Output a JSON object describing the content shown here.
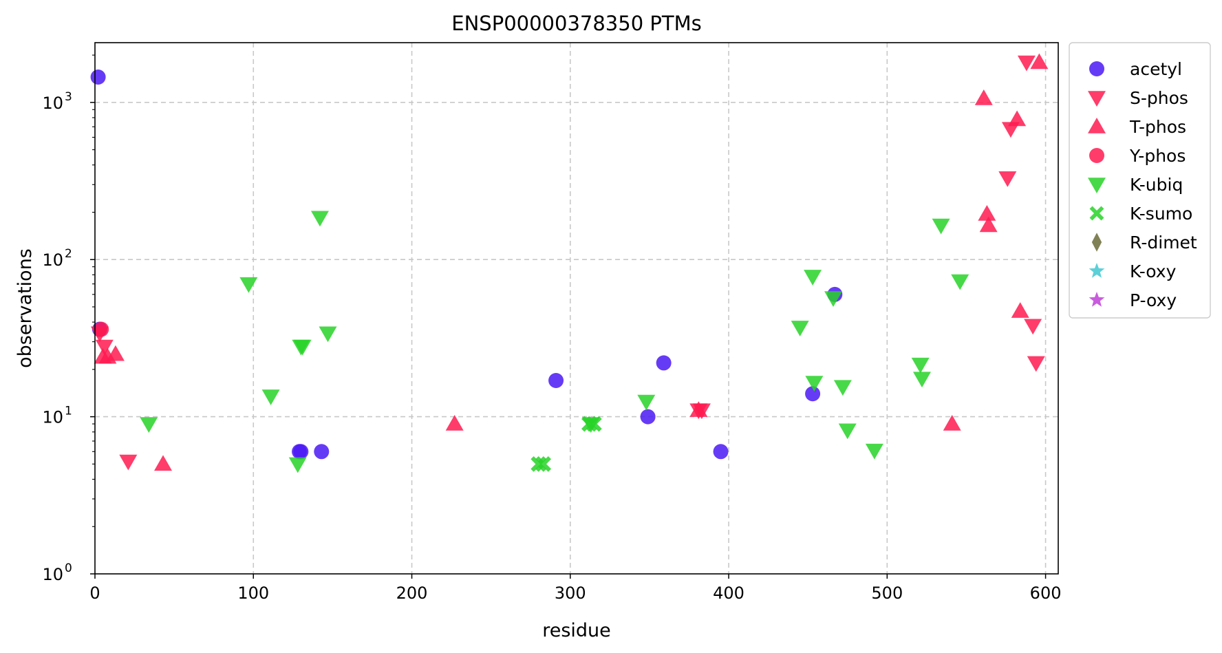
{
  "chart_data": {
    "type": "scatter",
    "title": "ENSP00000378350 PTMs",
    "xlabel": "residue",
    "ylabel": "observations",
    "xlim": [
      0,
      608
    ],
    "ylim": [
      1,
      2400
    ],
    "yscale": "log",
    "grid": true,
    "legend_position": "outside-top-right",
    "x_ticks": [
      0,
      100,
      200,
      300,
      400,
      500,
      600
    ],
    "x_tick_labels": [
      "0",
      "100",
      "200",
      "300",
      "400",
      "500",
      "600"
    ],
    "y_ticks": [
      {
        "value": 1,
        "base": "10",
        "exp": "0"
      },
      {
        "value": 10,
        "base": "10",
        "exp": "1"
      },
      {
        "value": 100,
        "base": "10",
        "exp": "2"
      },
      {
        "value": 1000,
        "base": "10",
        "exp": "3"
      }
    ],
    "series": [
      {
        "name": "acetyl",
        "marker": "circle",
        "color": "#4b19f5",
        "points": [
          [
            2,
            1450
          ],
          [
            3,
            36
          ],
          [
            129,
            6
          ],
          [
            130,
            6
          ],
          [
            143,
            6
          ],
          [
            291,
            17
          ],
          [
            349,
            10
          ],
          [
            359,
            22
          ],
          [
            395,
            6
          ],
          [
            453,
            14
          ],
          [
            467,
            60
          ]
        ]
      },
      {
        "name": "S-phos",
        "marker": "triangle-down",
        "color": "#ff1a50",
        "points": [
          [
            3,
            34
          ],
          [
            6,
            28
          ],
          [
            21,
            5.2
          ],
          [
            381,
            11
          ],
          [
            383,
            11
          ],
          [
            576,
            330
          ],
          [
            578,
            680
          ],
          [
            588,
            1800
          ],
          [
            592,
            38
          ],
          [
            594,
            22
          ]
        ]
      },
      {
        "name": "T-phos",
        "marker": "triangle-up",
        "color": "#ff1a50",
        "points": [
          [
            5,
            24
          ],
          [
            8,
            24
          ],
          [
            13,
            25
          ],
          [
            43,
            5
          ],
          [
            227,
            9
          ],
          [
            381,
            11
          ],
          [
            541,
            9
          ],
          [
            561,
            1060
          ],
          [
            563,
            195
          ],
          [
            564,
            165
          ],
          [
            582,
            780
          ],
          [
            584,
            47
          ],
          [
            596,
            1800
          ]
        ]
      },
      {
        "name": "Y-phos",
        "marker": "circle",
        "color": "#ff1a50",
        "points": [
          [
            4,
            36
          ]
        ]
      },
      {
        "name": "K-ubiq",
        "marker": "triangle-down",
        "color": "#28d228",
        "points": [
          [
            34,
            9
          ],
          [
            97,
            70
          ],
          [
            111,
            13.5
          ],
          [
            128,
            5
          ],
          [
            130,
            28
          ],
          [
            131,
            28
          ],
          [
            142,
            185
          ],
          [
            147,
            34
          ],
          [
            313,
            9
          ],
          [
            348,
            12.5
          ],
          [
            445,
            37
          ],
          [
            453,
            78
          ],
          [
            454,
            16.5
          ],
          [
            466,
            57
          ],
          [
            472,
            15.5
          ],
          [
            475,
            8.2
          ],
          [
            492,
            6.1
          ],
          [
            521,
            21.5
          ],
          [
            522,
            17.5
          ],
          [
            534,
            165
          ],
          [
            546,
            73
          ]
        ]
      },
      {
        "name": "K-sumo",
        "marker": "x",
        "color": "#28d228",
        "points": [
          [
            280,
            5
          ],
          [
            283,
            5
          ],
          [
            312,
            9
          ],
          [
            315,
            9
          ]
        ]
      },
      {
        "name": "R-dimet",
        "marker": "diamond",
        "color": "#6b6b3a",
        "points": []
      },
      {
        "name": "K-oxy",
        "marker": "star",
        "color": "#40c8d0",
        "points": []
      },
      {
        "name": "P-oxy",
        "marker": "star",
        "color": "#c040d8",
        "points": []
      }
    ]
  }
}
